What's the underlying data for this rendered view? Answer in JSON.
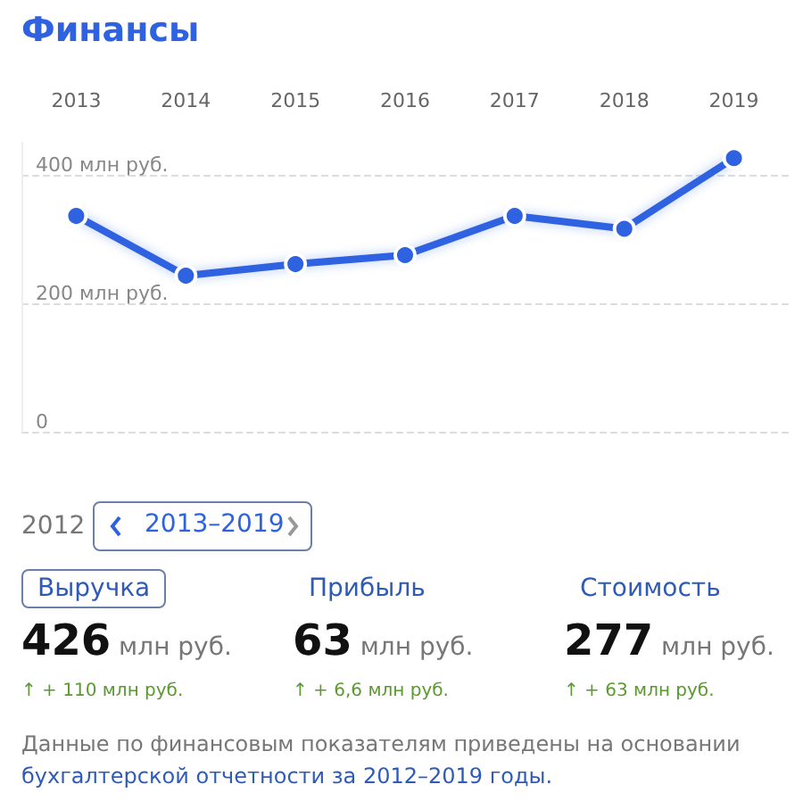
{
  "chart_data": {
    "type": "line",
    "title": "Финансы",
    "categories": [
      "2013",
      "2014",
      "2015",
      "2016",
      "2017",
      "2018",
      "2019"
    ],
    "series": [
      {
        "color": "#2f62e0",
        "values": [
          336,
          243,
          261,
          275,
          336,
          316,
          426
        ]
      }
    ],
    "ylim": [
      0,
      450
    ],
    "yticks": [
      0,
      {
        "value": 200,
        "label": "200 млн руб."
      },
      {
        "value": 400,
        "label": "400 млн руб."
      }
    ],
    "grid": "y",
    "marker": "circle",
    "line_style": "solid",
    "annotations": [
      "2012",
      "2013–2019",
      "Выручка",
      "Прибыль",
      "Стоимость",
      "426 млн руб.",
      "63 млн руб.",
      "277 млн руб.",
      "↑ + 110 млн руб.",
      "↑ + 6,6 млн руб.",
      "↑ + 63 млн руб.",
      "Данные по финансовым показателям приведены на основании",
      "бухгалтерской отчетности за 2012–2019 годы."
    ]
  }
}
